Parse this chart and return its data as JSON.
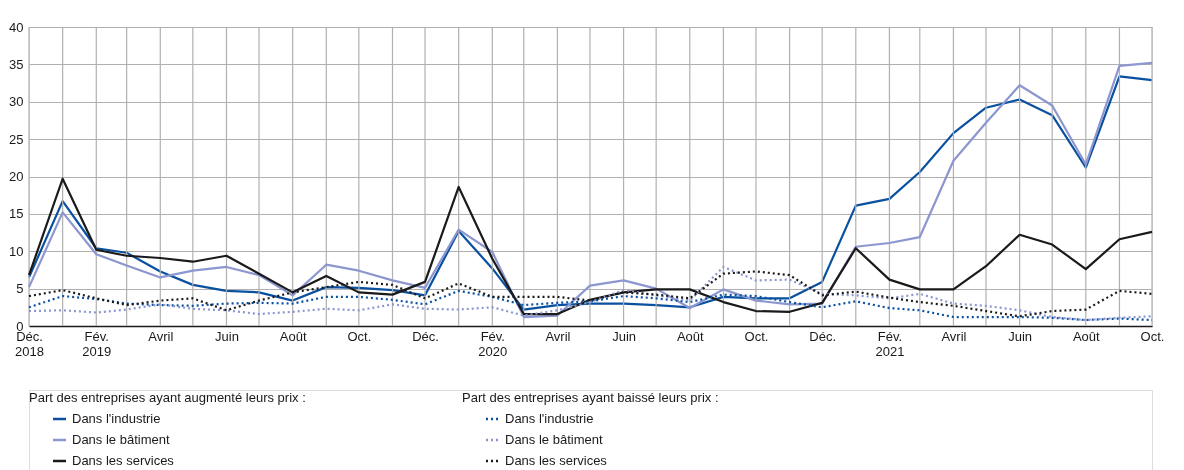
{
  "chart_data": {
    "type": "line",
    "x": [
      "2018-12",
      "2019-01",
      "2019-02",
      "2019-03",
      "2019-04",
      "2019-05",
      "2019-06",
      "2019-07",
      "2019-08",
      "2019-09",
      "2019-10",
      "2019-11",
      "2019-12",
      "2020-01",
      "2020-02",
      "2020-03",
      "2020-04",
      "2020-05",
      "2020-06",
      "2020-07",
      "2020-08",
      "2020-09",
      "2020-10",
      "2020-11",
      "2020-12",
      "2021-01",
      "2021-02",
      "2021-03",
      "2021-04",
      "2021-05",
      "2021-06",
      "2021-07",
      "2021-08",
      "2021-09",
      "2021-10"
    ],
    "xlim": [
      "2018-12",
      "2021-10"
    ],
    "xticks": [
      {
        "value": "2018-12",
        "label": "Déc.\n2018"
      },
      {
        "value": "2019-01",
        "label": null
      },
      {
        "value": "2019-02",
        "label": "Fév.\n2019"
      },
      {
        "value": "2019-03",
        "label": null
      },
      {
        "value": "2019-04",
        "label": "Avril"
      },
      {
        "value": "2019-05",
        "label": null
      },
      {
        "value": "2019-06",
        "label": "Juin"
      },
      {
        "value": "2019-07",
        "label": null
      },
      {
        "value": "2019-08",
        "label": "Août"
      },
      {
        "value": "2019-09",
        "label": null
      },
      {
        "value": "2019-10",
        "label": "Oct."
      },
      {
        "value": "2019-11",
        "label": null
      },
      {
        "value": "2019-12",
        "label": "Déc."
      },
      {
        "value": "2020-01",
        "label": null
      },
      {
        "value": "2020-02",
        "label": "Fév.\n2020"
      },
      {
        "value": "2020-03",
        "label": null
      },
      {
        "value": "2020-04",
        "label": "Avril"
      },
      {
        "value": "2020-05",
        "label": null
      },
      {
        "value": "2020-06",
        "label": "Juin"
      },
      {
        "value": "2020-07",
        "label": null
      },
      {
        "value": "2020-08",
        "label": "Août"
      },
      {
        "value": "2020-09",
        "label": null
      },
      {
        "value": "2020-10",
        "label": "Oct."
      },
      {
        "value": "2020-11",
        "label": null
      },
      {
        "value": "2020-12",
        "label": "Déc."
      },
      {
        "value": "2021-01",
        "label": null
      },
      {
        "value": "2021-02",
        "label": "Fév.\n2021"
      },
      {
        "value": "2021-03",
        "label": null
      },
      {
        "value": "2021-04",
        "label": "Avril"
      },
      {
        "value": "2021-05",
        "label": null
      },
      {
        "value": "2021-06",
        "label": "Juin"
      },
      {
        "value": "2021-07",
        "label": null
      },
      {
        "value": "2021-08",
        "label": "Août"
      },
      {
        "value": "2021-09",
        "label": null
      },
      {
        "value": "2021-10",
        "label": "Oct."
      }
    ],
    "ylim": [
      0,
      40
    ],
    "yticks": [
      0,
      5,
      10,
      15,
      20,
      25,
      30,
      35,
      40
    ],
    "grid": true,
    "legend": "bottom",
    "annotations": [
      "Part des entreprises ayant augmenté leurs prix :",
      "Part des entreprises ayant baissé leurs prix :"
    ],
    "series": [
      {
        "name": "Dans l'industrie",
        "color": "#0a50a0",
        "line_style": "solid",
        "values": [
          6.5,
          16.7,
          10.4,
          9.8,
          7.3,
          5.5,
          4.7,
          4.5,
          3.4,
          5.2,
          5.1,
          4.8,
          4.1,
          12.7,
          7.7,
          2.2,
          2.8,
          3.0,
          3.0,
          2.8,
          2.5,
          3.9,
          3.7,
          3.7,
          5.9,
          16.1,
          17.0,
          20.6,
          25.8,
          29.2,
          30.3,
          28.2,
          21.2,
          33.4,
          32.9
        ]
      },
      {
        "name": "Dans le bâtiment",
        "color": "#8c96cf",
        "line_style": "solid",
        "values": [
          5.2,
          15.2,
          9.6,
          8.1,
          6.5,
          7.4,
          7.9,
          6.8,
          4.1,
          8.2,
          7.4,
          6.1,
          5.1,
          12.9,
          9.9,
          1.2,
          1.4,
          5.4,
          6.1,
          5.0,
          2.4,
          4.9,
          3.4,
          2.9,
          3.0,
          10.6,
          11.1,
          11.9,
          22.1,
          27.2,
          32.2,
          29.5,
          21.6,
          34.8,
          35.2
        ]
      },
      {
        "name": "Dans les services",
        "color": "#1a1a1a",
        "line_style": "solid",
        "values": [
          6.8,
          19.7,
          10.2,
          9.4,
          9.1,
          8.6,
          9.4,
          7.0,
          4.5,
          6.7,
          4.5,
          4.2,
          5.9,
          18.6,
          9.0,
          1.6,
          1.6,
          3.5,
          4.5,
          4.9,
          4.9,
          3.2,
          2.0,
          1.9,
          3.1,
          10.4,
          6.2,
          4.9,
          4.9,
          8.0,
          12.2,
          10.9,
          7.6,
          11.6,
          12.6
        ]
      },
      {
        "name": "Dans l'industrie",
        "color": "#0a50a0",
        "line_style": "dotted",
        "values": [
          2.5,
          4.0,
          3.6,
          3.0,
          2.8,
          2.7,
          3.0,
          3.1,
          3.0,
          3.9,
          3.9,
          3.5,
          2.9,
          4.7,
          3.9,
          2.8,
          3.1,
          3.3,
          4.0,
          3.7,
          3.2,
          4.2,
          4.0,
          3.2,
          2.5,
          3.3,
          2.4,
          2.1,
          1.2,
          1.2,
          1.2,
          1.1,
          0.8,
          1.0,
          0.8
        ]
      },
      {
        "name": "Dans le bâtiment",
        "color": "#8c96cf",
        "line_style": "dotted",
        "values": [
          2.0,
          2.1,
          1.8,
          2.2,
          2.9,
          2.3,
          2.1,
          1.6,
          1.9,
          2.3,
          2.1,
          2.9,
          2.3,
          2.2,
          2.5,
          1.4,
          2.1,
          3.2,
          4.8,
          4.1,
          3.4,
          7.9,
          6.1,
          6.2,
          4.3,
          4.1,
          3.7,
          4.3,
          3.0,
          2.7,
          2.1,
          1.2,
          0.8,
          1.1,
          1.3
        ]
      },
      {
        "name": "Dans les services",
        "color": "#1a1a1a",
        "line_style": "dotted",
        "values": [
          4.0,
          4.8,
          3.7,
          2.8,
          3.4,
          3.7,
          2.1,
          3.4,
          4.5,
          5.2,
          5.9,
          5.5,
          3.7,
          5.7,
          3.9,
          3.9,
          3.9,
          3.4,
          4.5,
          4.2,
          3.7,
          7.0,
          7.3,
          6.8,
          4.1,
          4.6,
          3.8,
          3.2,
          2.7,
          2.0,
          1.3,
          2.0,
          2.2,
          4.7,
          4.3
        ]
      }
    ]
  }
}
